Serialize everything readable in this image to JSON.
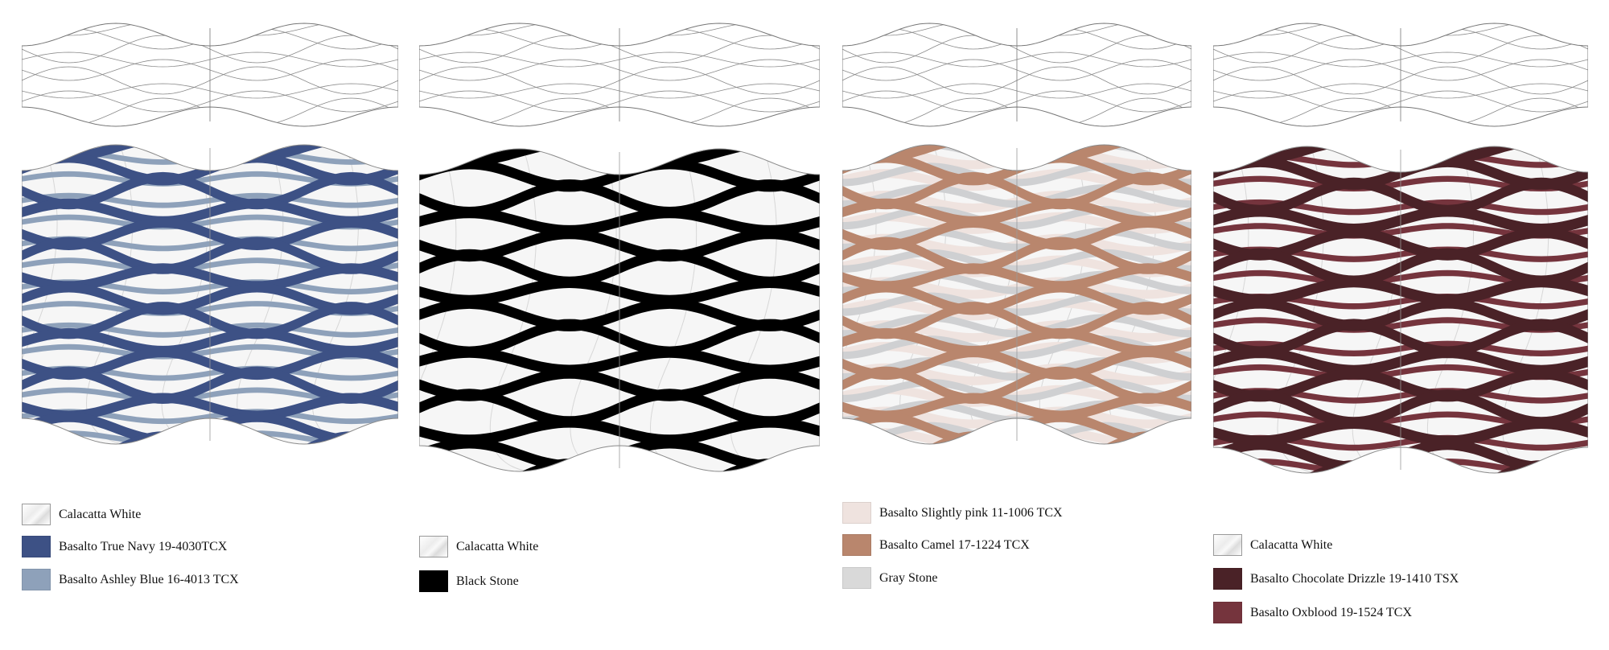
{
  "panels": [
    {
      "id": "navy",
      "primary_color": "#3d5185",
      "secondary_color": "#8ea1ba",
      "legend": [
        {
          "label": "Calacatta White",
          "type": "marble",
          "color": "#f2f2f2"
        },
        {
          "label": "Basalto True Navy 19-4030TCX",
          "type": "solid",
          "color": "#3d5185"
        },
        {
          "label": "Basalto Ashley Blue 16-4013 TCX",
          "type": "solid",
          "color": "#8ea1ba"
        }
      ]
    },
    {
      "id": "black",
      "primary_color": "#000000",
      "secondary_color": "#000000",
      "legend": [
        {
          "label": "Calacatta White",
          "type": "marble",
          "color": "#f2f2f2"
        },
        {
          "label": "Black Stone",
          "type": "solid",
          "color": "#000000"
        }
      ]
    },
    {
      "id": "camel",
      "primary_color": "#b9866d",
      "secondary_color": "#cfd0d2",
      "tertiary_color": "#efe3df",
      "legend": [
        {
          "label": "Basalto Slightly pink 11-1006 TCX",
          "type": "solid",
          "color": "#efe3df"
        },
        {
          "label": "Basalto Camel 17-1224 TCX",
          "type": "solid",
          "color": "#b9866d"
        },
        {
          "label": "Gray Stone",
          "type": "solid",
          "color": "#d9d9d9"
        }
      ]
    },
    {
      "id": "oxblood",
      "primary_color": "#4a2227",
      "secondary_color": "#75343d",
      "legend": [
        {
          "label": "Calacatta White",
          "type": "marble",
          "color": "#f2f2f2"
        },
        {
          "label": "Basalto Chocolate Drizzle 19-1410 TSX",
          "type": "solid",
          "color": "#4a2227"
        },
        {
          "label": "Basalto Oxblood 19-1524 TCX",
          "type": "solid",
          "color": "#75343d"
        }
      ]
    }
  ]
}
